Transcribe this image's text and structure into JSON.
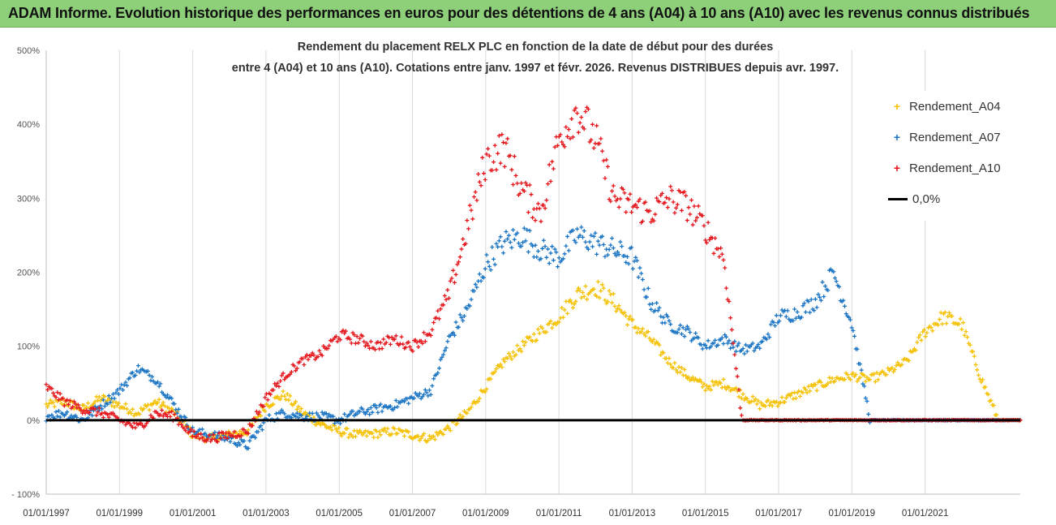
{
  "banner": {
    "text": "ADAM Informe. Evolution historique des performances en euros pour des détentions de 4 ans (A04) à 10 ans (A10) avec les revenus connus distribués"
  },
  "colors": {
    "banner_bg": "#8ecf7a",
    "a04": "#f5c000",
    "a07": "#1a74c4",
    "a10": "#e4151b",
    "zero": "#000000"
  },
  "chart_data": {
    "type": "scatter",
    "title_line1": "Rendement du placement RELX PLC en fonction de la date de début pour des durées",
    "title_line2": "entre 4 (A04) et 10 ans (A10).  Cotations entre janv. 1997 et févr. 2026. Revenus DISTRIBUES depuis avr. 1997.",
    "xlabel": "",
    "ylabel": "",
    "xlim": [
      1997.0,
      2023.6
    ],
    "ylim": [
      -100,
      500
    ],
    "y_ticks": [
      -100,
      0,
      100,
      200,
      300,
      400,
      500
    ],
    "y_tick_labels": [
      "- 100%",
      "0%",
      "100%",
      "200%",
      "300%",
      "400%",
      "500%"
    ],
    "x_ticks": [
      1997,
      1999,
      2001,
      2003,
      2005,
      2007,
      2009,
      2011,
      2013,
      2015,
      2017,
      2019,
      2021
    ],
    "x_tick_labels": [
      "01/01/1997",
      "01/01/1999",
      "01/01/2001",
      "01/01/2003",
      "01/01/2005",
      "01/01/2007",
      "01/01/2009",
      "01/01/2011",
      "01/01/2013",
      "01/01/2015",
      "01/01/2017",
      "01/01/2019",
      "01/01/2021"
    ],
    "grid": "vertical",
    "legend_position": "right",
    "series": [
      {
        "name": "Rendement_A04",
        "color": "#f5c000",
        "x": [
          1997.0,
          1997.5,
          1998.0,
          1998.5,
          1999.0,
          1999.5,
          2000.0,
          2000.5,
          2001.0,
          2001.5,
          2002.0,
          2002.5,
          2003.0,
          2003.5,
          2004.0,
          2004.5,
          2005.0,
          2005.5,
          2006.0,
          2006.5,
          2007.0,
          2007.5,
          2008.0,
          2008.5,
          2009.0,
          2009.5,
          2010.0,
          2010.5,
          2011.0,
          2011.5,
          2012.0,
          2012.5,
          2013.0,
          2013.5,
          2014.0,
          2014.5,
          2015.0,
          2015.5,
          2016.0,
          2016.5,
          2017.0,
          2017.5,
          2018.0,
          2018.5,
          2019.0,
          2019.5,
          2020.0,
          2020.5,
          2021.0,
          2021.5,
          2022.0,
          2022.5,
          2023.0,
          2023.6
        ],
        "y": [
          20,
          25,
          15,
          30,
          20,
          10,
          25,
          10,
          -20,
          -25,
          -20,
          -15,
          20,
          35,
          10,
          -5,
          -15,
          -20,
          -18,
          -15,
          -20,
          -25,
          -10,
          10,
          45,
          80,
          100,
          120,
          140,
          170,
          180,
          160,
          130,
          110,
          80,
          60,
          45,
          50,
          35,
          20,
          25,
          35,
          45,
          55,
          60,
          55,
          65,
          80,
          120,
          140,
          130,
          60,
          0,
          0
        ]
      },
      {
        "name": "Rendement_A07",
        "color": "#1a74c4",
        "x": [
          1997.0,
          1997.5,
          1998.0,
          1998.5,
          1999.0,
          1999.5,
          2000.0,
          2000.5,
          2001.0,
          2001.5,
          2002.0,
          2002.5,
          2003.0,
          2003.5,
          2004.0,
          2004.5,
          2005.0,
          2005.5,
          2006.0,
          2006.5,
          2007.0,
          2007.5,
          2008.0,
          2008.5,
          2009.0,
          2009.5,
          2010.0,
          2010.5,
          2011.0,
          2011.5,
          2012.0,
          2012.5,
          2013.0,
          2013.5,
          2014.0,
          2014.5,
          2015.0,
          2015.5,
          2016.0,
          2016.5,
          2017.0,
          2017.5,
          2018.0,
          2018.5,
          2019.0,
          2019.5,
          2020.0,
          2020.5,
          2021.0,
          2021.5,
          2022.0,
          2022.5,
          2023.0,
          2023.6
        ],
        "y": [
          5,
          10,
          0,
          20,
          40,
          70,
          55,
          20,
          -15,
          -20,
          -25,
          -35,
          0,
          10,
          5,
          5,
          0,
          10,
          15,
          20,
          30,
          40,
          110,
          150,
          210,
          240,
          250,
          230,
          220,
          250,
          240,
          230,
          220,
          160,
          130,
          120,
          100,
          110,
          95,
          100,
          140,
          145,
          160,
          200,
          130,
          0,
          0,
          0,
          0,
          0,
          0,
          0,
          0,
          0
        ]
      },
      {
        "name": "Rendement_A10",
        "color": "#e4151b",
        "x": [
          1997.0,
          1997.5,
          1998.0,
          1998.5,
          1999.0,
          1999.5,
          2000.0,
          2000.5,
          2001.0,
          2001.5,
          2002.0,
          2002.5,
          2003.0,
          2003.5,
          2004.0,
          2004.5,
          2005.0,
          2005.5,
          2006.0,
          2006.5,
          2007.0,
          2007.5,
          2008.0,
          2008.5,
          2009.0,
          2009.5,
          2010.0,
          2010.5,
          2011.0,
          2011.5,
          2012.0,
          2012.5,
          2013.0,
          2013.5,
          2014.0,
          2014.5,
          2015.0,
          2015.5,
          2016.0,
          2016.5,
          2017.0,
          2017.5,
          2018.0,
          2018.5,
          2019.0,
          2019.5,
          2020.0,
          2020.5,
          2021.0,
          2021.5,
          2022.0,
          2022.5,
          2023.0,
          2023.6
        ],
        "y": [
          45,
          25,
          15,
          10,
          0,
          -10,
          10,
          5,
          -20,
          -25,
          -20,
          -15,
          30,
          60,
          80,
          90,
          115,
          110,
          100,
          110,
          100,
          120,
          170,
          260,
          350,
          370,
          310,
          280,
          380,
          420,
          380,
          300,
          290,
          280,
          300,
          290,
          260,
          220,
          0,
          0,
          0,
          0,
          0,
          0,
          0,
          0,
          0,
          0,
          0,
          0,
          0,
          0,
          0,
          0
        ]
      },
      {
        "name": "0,0%",
        "color": "#000000",
        "x": [
          1997.0,
          2023.6
        ],
        "y": [
          0,
          0
        ]
      }
    ]
  },
  "legend": {
    "items": [
      "Rendement_A04",
      "Rendement_A07",
      "Rendement_A10",
      "0,0%"
    ]
  }
}
